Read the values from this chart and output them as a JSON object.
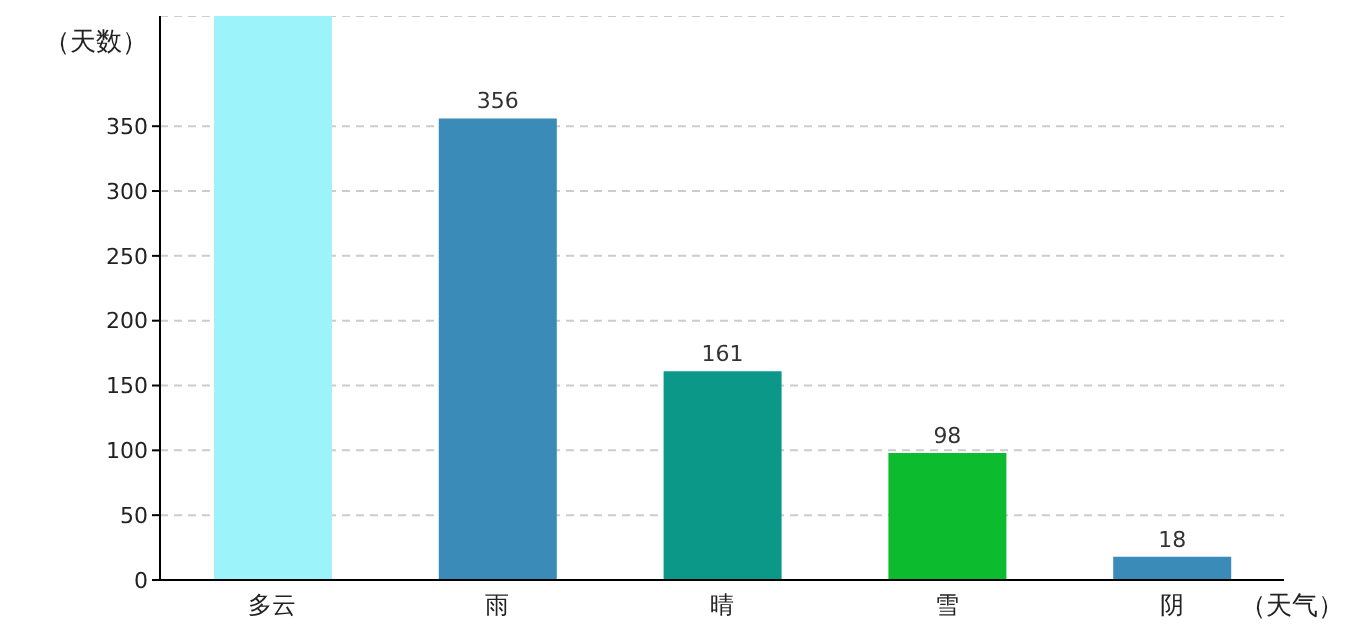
{
  "chart_data": {
    "type": "bar",
    "ylabel": "（天数）",
    "xlabel": "（天气）",
    "categories": [
      "多云",
      "雨",
      "晴",
      "雪",
      "阴"
    ],
    "values": [
      435,
      356,
      161,
      98,
      18
    ],
    "colors": [
      "#9cf3f9",
      "#3a8bb8",
      "#0b9888",
      "#0dbb2e",
      "#3a8bb8"
    ],
    "value_labels": [
      null,
      "356",
      "161",
      "98",
      "18"
    ],
    "ylim": [
      0,
      435
    ],
    "yticks": [
      0,
      50,
      100,
      150,
      200,
      250,
      300,
      350
    ],
    "grid": "y"
  }
}
